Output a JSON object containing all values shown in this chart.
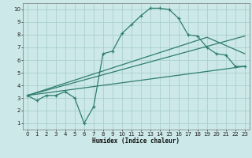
{
  "xlabel": "Humidex (Indice chaleur)",
  "bg_color": "#cce8e8",
  "grid_color": "#aad0d0",
  "line_color": "#2e7d6e",
  "xlim": [
    -0.5,
    23.5
  ],
  "ylim": [
    0.5,
    10.5
  ],
  "xticks": [
    0,
    1,
    2,
    3,
    4,
    5,
    6,
    7,
    8,
    9,
    10,
    11,
    12,
    13,
    14,
    15,
    16,
    17,
    18,
    19,
    20,
    21,
    22,
    23
  ],
  "yticks": [
    1,
    2,
    3,
    4,
    5,
    6,
    7,
    8,
    9,
    10
  ],
  "line1_x": [
    0,
    1,
    2,
    3,
    4,
    5,
    6,
    7,
    8,
    9,
    10,
    11,
    12,
    13,
    14,
    15,
    16,
    17,
    18,
    19,
    20,
    21,
    22,
    23
  ],
  "line1_y": [
    3.2,
    2.8,
    3.2,
    3.2,
    3.5,
    3.0,
    1.0,
    2.3,
    6.5,
    6.7,
    8.1,
    8.8,
    9.5,
    10.1,
    10.1,
    10.0,
    9.3,
    8.0,
    7.9,
    7.0,
    6.5,
    6.4,
    5.5,
    5.5
  ],
  "line2_x": [
    0,
    23
  ],
  "line2_y": [
    3.2,
    5.5
  ],
  "line3_x": [
    0,
    19,
    23
  ],
  "line3_y": [
    3.2,
    7.8,
    6.5
  ],
  "line4_x": [
    0,
    23
  ],
  "line4_y": [
    3.2,
    7.9
  ]
}
